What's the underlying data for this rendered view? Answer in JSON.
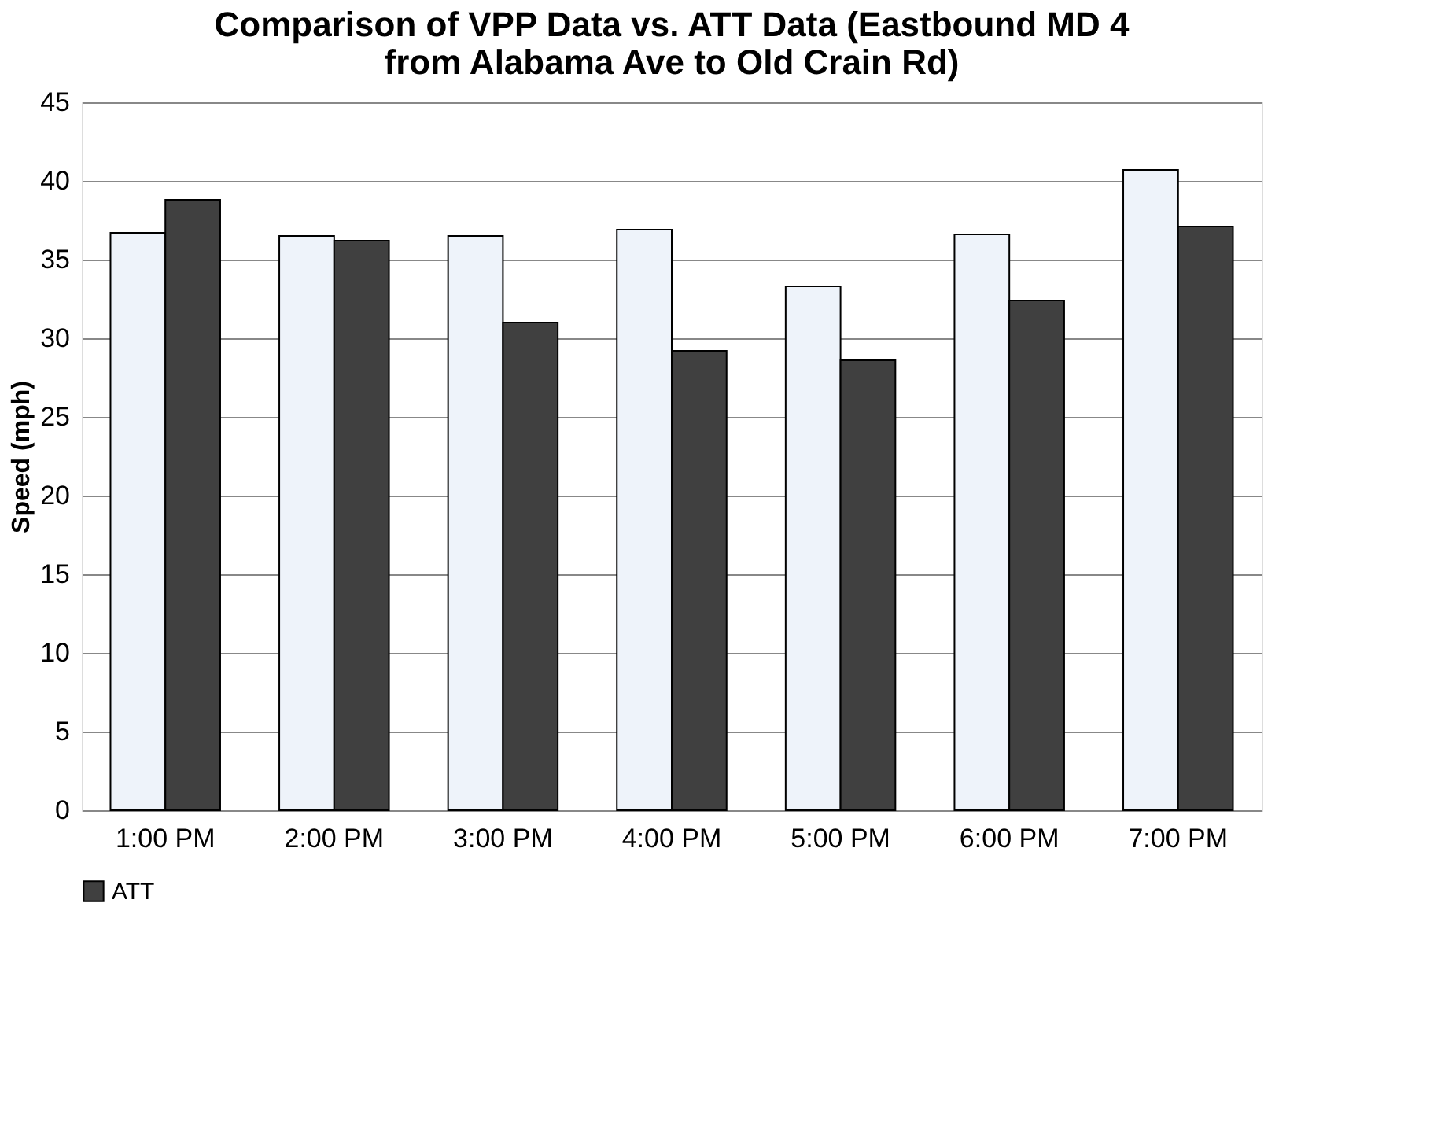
{
  "chart_data": {
    "type": "bar",
    "title": "Comparison of VPP Data vs. ATT Data (Eastbound MD 4 from Alabama Ave to Old Crain Rd)",
    "ylabel": "Speed (mph)",
    "categories": [
      "1:00 PM",
      "2:00 PM",
      "3:00 PM",
      "4:00 PM",
      "5:00 PM",
      "6:00 PM",
      "7:00 PM"
    ],
    "series": [
      {
        "color": "#eef3fa",
        "values": [
          36.7,
          36.5,
          36.5,
          36.9,
          33.3,
          36.6,
          40.7
        ]
      },
      {
        "name": "ATT",
        "color": "#404040",
        "values": [
          38.8,
          36.2,
          31.0,
          29.2,
          28.6,
          32.4,
          37.1
        ]
      }
    ],
    "ylim": [
      0,
      45
    ],
    "yticks": [
      0,
      5,
      10,
      15,
      20,
      25,
      30,
      35,
      40,
      45
    ],
    "grid": "y",
    "legend": "bottom"
  }
}
